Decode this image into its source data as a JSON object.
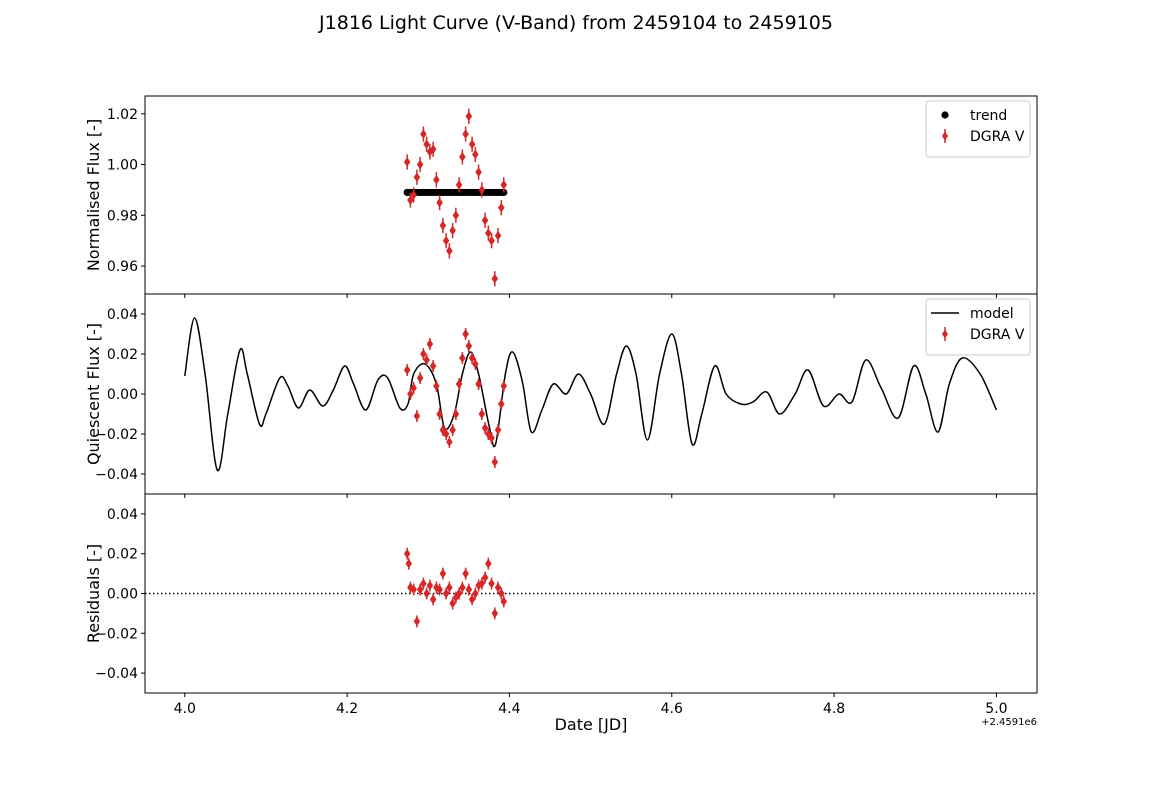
{
  "title": "J1816 Light Curve (V-Band) from 2459104 to 2459105",
  "colors": {
    "data": "#d62728",
    "trend": "#000000",
    "model": "#000000",
    "axes": "#000000"
  },
  "xaxis": {
    "label": "Date [JD]",
    "offset_text": "+2.4591e6",
    "ticks": [
      4.0,
      4.2,
      4.4,
      4.6,
      4.8,
      5.0
    ],
    "tick_labels": [
      "4.0",
      "4.2",
      "4.4",
      "4.6",
      "4.8",
      "5.0"
    ],
    "range": [
      3.951,
      5.05
    ]
  },
  "chart_data": [
    {
      "type": "scatter",
      "panel": "top",
      "ylabel": "Normalised Flux [-]",
      "ylim": [
        0.949,
        1.027
      ],
      "yticks": [
        0.96,
        0.98,
        1.0,
        1.02
      ],
      "ytick_labels": [
        "0.96",
        "0.98",
        "1.00",
        "1.02"
      ],
      "legend": {
        "placement": "upper right",
        "entries": [
          {
            "label": "trend",
            "marker": "dot"
          },
          {
            "label": "DGRA V",
            "marker": "errorbar"
          }
        ]
      },
      "series": [
        {
          "name": "trend",
          "x_range": [
            4.274,
            4.393
          ],
          "y": 0.989
        },
        {
          "name": "DGRA V",
          "x": [
            4.274,
            4.278,
            4.282,
            4.286,
            4.29,
            4.294,
            4.298,
            4.302,
            4.306,
            4.31,
            4.314,
            4.318,
            4.322,
            4.326,
            4.33,
            4.334,
            4.338,
            4.342,
            4.346,
            4.35,
            4.354,
            4.358,
            4.362,
            4.366,
            4.37,
            4.374,
            4.378,
            4.382,
            4.386,
            4.39,
            4.393
          ],
          "y": [
            1.001,
            0.986,
            0.988,
            0.995,
            1.0,
            1.012,
            1.008,
            1.005,
            1.006,
            0.994,
            0.985,
            0.976,
            0.97,
            0.966,
            0.974,
            0.98,
            0.992,
            1.003,
            1.012,
            1.019,
            1.008,
            1.004,
            0.997,
            0.99,
            0.978,
            0.973,
            0.97,
            0.955,
            0.972,
            0.983,
            0.992
          ],
          "yerr": 0.003
        }
      ]
    },
    {
      "type": "line",
      "panel": "middle",
      "ylabel": "Quiescent Flux [-]",
      "ylim": [
        -0.05,
        0.05
      ],
      "yticks": [
        -0.04,
        -0.02,
        0.0,
        0.02,
        0.04
      ],
      "ytick_labels": [
        "−0.04",
        "−0.02",
        "0.00",
        "0.02",
        "0.04"
      ],
      "legend": {
        "placement": "upper right",
        "entries": [
          {
            "label": "model",
            "marker": "line"
          },
          {
            "label": "DGRA V",
            "marker": "errorbar"
          }
        ]
      },
      "series": [
        {
          "name": "model",
          "x": [
            4.0,
            4.012,
            4.025,
            4.04,
            4.053,
            4.068,
            4.077,
            4.092,
            4.1,
            4.117,
            4.127,
            4.14,
            4.154,
            4.17,
            4.183,
            4.197,
            4.208,
            4.223,
            4.238,
            4.25,
            4.265,
            4.275,
            4.282,
            4.296,
            4.31,
            4.32,
            4.332,
            4.342,
            4.352,
            4.362,
            4.375,
            4.383,
            4.395,
            4.404,
            4.416,
            4.427,
            4.44,
            4.454,
            4.47,
            4.485,
            4.5,
            4.517,
            4.532,
            4.544,
            4.556,
            4.57,
            4.585,
            4.6,
            4.612,
            4.625,
            4.637,
            4.653,
            4.667,
            4.685,
            4.7,
            4.717,
            4.733,
            4.752,
            4.768,
            4.787,
            4.806,
            4.822,
            4.839,
            4.858,
            4.879,
            4.898,
            4.913,
            4.928,
            4.942,
            4.958,
            4.98,
            5.0
          ],
          "y": [
            0.009,
            0.038,
            0.01,
            -0.038,
            -0.01,
            0.022,
            0.01,
            -0.015,
            -0.01,
            0.008,
            0.004,
            -0.007,
            0.002,
            -0.006,
            0.002,
            0.014,
            0.005,
            -0.008,
            0.007,
            0.008,
            -0.007,
            -0.005,
            0.01,
            0.015,
            0.005,
            -0.017,
            -0.01,
            0.01,
            0.021,
            0.01,
            -0.016,
            -0.025,
            0.01,
            0.021,
            0.006,
            -0.019,
            -0.008,
            0.005,
            0.0,
            0.01,
            0.0,
            -0.015,
            0.01,
            0.024,
            0.01,
            -0.023,
            0.01,
            0.03,
            0.01,
            -0.025,
            -0.01,
            0.014,
            0.0,
            -0.005,
            -0.004,
            0.001,
            -0.01,
            0.0,
            0.012,
            -0.006,
            0.0,
            -0.004,
            0.017,
            0.003,
            -0.012,
            0.014,
            0.0,
            -0.019,
            0.005,
            0.018,
            0.01,
            -0.008
          ]
        },
        {
          "name": "DGRA V",
          "x": [
            4.274,
            4.278,
            4.282,
            4.286,
            4.29,
            4.294,
            4.298,
            4.302,
            4.306,
            4.31,
            4.314,
            4.318,
            4.322,
            4.326,
            4.33,
            4.334,
            4.338,
            4.342,
            4.346,
            4.35,
            4.354,
            4.358,
            4.362,
            4.366,
            4.37,
            4.374,
            4.378,
            4.382,
            4.386,
            4.39,
            4.393
          ],
          "y": [
            0.012,
            0.0,
            0.003,
            -0.011,
            0.008,
            0.02,
            0.017,
            0.025,
            0.014,
            0.004,
            -0.01,
            -0.018,
            -0.02,
            -0.024,
            -0.018,
            -0.01,
            0.005,
            0.018,
            0.03,
            0.024,
            0.018,
            0.015,
            0.005,
            -0.01,
            -0.017,
            -0.02,
            -0.022,
            -0.034,
            -0.018,
            -0.005,
            0.004
          ],
          "yerr": 0.003
        }
      ]
    },
    {
      "type": "scatter",
      "panel": "bottom",
      "ylabel": "Residuals [-]",
      "ylim": [
        -0.05,
        0.05
      ],
      "yticks": [
        -0.04,
        -0.02,
        0.0,
        0.02,
        0.04
      ],
      "ytick_labels": [
        "−0.04",
        "−0.02",
        "0.00",
        "0.02",
        "0.04"
      ],
      "reference_line": {
        "y": 0.0,
        "style": "dotted"
      },
      "series": [
        {
          "name": "DGRA V",
          "x": [
            4.274,
            4.276,
            4.278,
            4.282,
            4.286,
            4.29,
            4.294,
            4.298,
            4.302,
            4.306,
            4.31,
            4.314,
            4.318,
            4.322,
            4.326,
            4.33,
            4.334,
            4.338,
            4.342,
            4.346,
            4.35,
            4.354,
            4.358,
            4.362,
            4.366,
            4.37,
            4.374,
            4.378,
            4.382,
            4.386,
            4.39,
            4.393
          ],
          "y": [
            0.02,
            0.015,
            0.003,
            0.002,
            -0.014,
            0.002,
            0.005,
            0.0,
            0.004,
            -0.003,
            0.003,
            0.002,
            0.01,
            0.0,
            0.003,
            -0.005,
            -0.002,
            0.0,
            0.003,
            0.01,
            0.002,
            -0.003,
            0.0,
            0.004,
            0.005,
            0.008,
            0.015,
            0.005,
            -0.01,
            0.003,
            0.0,
            -0.004
          ],
          "yerr": 0.003
        }
      ]
    }
  ]
}
